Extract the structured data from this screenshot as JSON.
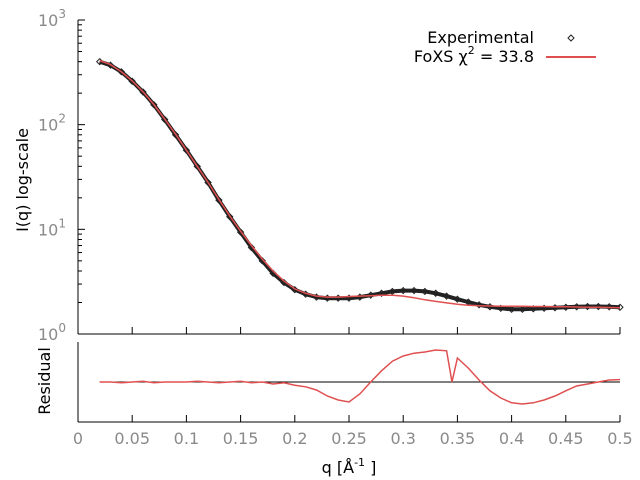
{
  "chart_data": [
    {
      "type": "scatter",
      "panel": "main",
      "ylabel": "I(q) log-scale",
      "yscale": "log",
      "ylim": [
        1,
        1000
      ],
      "xlim": [
        0,
        0.5
      ],
      "yticks": [
        {
          "base": "10",
          "exp": "0",
          "value": 1
        },
        {
          "base": "10",
          "exp": "1",
          "value": 10
        },
        {
          "base": "10",
          "exp": "2",
          "value": 100
        },
        {
          "base": "10",
          "exp": "3",
          "value": 1000
        }
      ],
      "legend_position": "top-right",
      "grid": false,
      "series": [
        {
          "name": "Experimental",
          "color": "#222222",
          "marker": "diamond",
          "x": [
            0.02,
            0.03,
            0.04,
            0.05,
            0.06,
            0.07,
            0.08,
            0.09,
            0.1,
            0.11,
            0.12,
            0.13,
            0.14,
            0.15,
            0.16,
            0.17,
            0.18,
            0.19,
            0.2,
            0.21,
            0.22,
            0.23,
            0.24,
            0.25,
            0.26,
            0.27,
            0.28,
            0.29,
            0.3,
            0.31,
            0.32,
            0.33,
            0.34,
            0.35,
            0.36,
            0.37,
            0.38,
            0.39,
            0.4,
            0.41,
            0.42,
            0.43,
            0.44,
            0.45,
            0.46,
            0.47,
            0.48,
            0.49,
            0.5
          ],
          "y": [
            400,
            370,
            320,
            260,
            205,
            155,
            112,
            80,
            57,
            40,
            28,
            19,
            13.2,
            9.4,
            6.7,
            5.0,
            3.8,
            3.1,
            2.65,
            2.4,
            2.25,
            2.2,
            2.2,
            2.2,
            2.25,
            2.35,
            2.45,
            2.55,
            2.6,
            2.6,
            2.55,
            2.45,
            2.3,
            2.15,
            2.02,
            1.9,
            1.82,
            1.76,
            1.72,
            1.72,
            1.74,
            1.76,
            1.78,
            1.8,
            1.82,
            1.83,
            1.83,
            1.82,
            1.8
          ]
        },
        {
          "name": "FoXS χ² = 33.8",
          "legend_text": "FoXS χ",
          "legend_sup": "2",
          "legend_suffix": " = 33.8",
          "color": "#e05050",
          "x": [
            0.02,
            0.03,
            0.04,
            0.05,
            0.06,
            0.07,
            0.08,
            0.09,
            0.1,
            0.11,
            0.12,
            0.13,
            0.14,
            0.15,
            0.16,
            0.17,
            0.18,
            0.19,
            0.2,
            0.21,
            0.22,
            0.23,
            0.24,
            0.25,
            0.26,
            0.27,
            0.28,
            0.29,
            0.3,
            0.31,
            0.32,
            0.33,
            0.34,
            0.35,
            0.36,
            0.37,
            0.38,
            0.39,
            0.4,
            0.41,
            0.42,
            0.43,
            0.44,
            0.45,
            0.46,
            0.47,
            0.48,
            0.49,
            0.5
          ],
          "y": [
            410,
            375,
            320,
            262,
            206,
            156,
            113,
            81,
            57,
            40,
            28,
            19.3,
            13.4,
            9.6,
            7.0,
            5.2,
            4.0,
            3.2,
            2.7,
            2.45,
            2.3,
            2.25,
            2.25,
            2.28,
            2.3,
            2.32,
            2.35,
            2.35,
            2.3,
            2.22,
            2.12,
            2.05,
            1.98,
            1.92,
            1.88,
            1.86,
            1.85,
            1.84,
            1.84,
            1.84,
            1.83,
            1.83,
            1.82,
            1.82,
            1.81,
            1.8,
            1.8,
            1.79,
            1.78
          ]
        }
      ]
    },
    {
      "type": "line",
      "panel": "residual",
      "xlabel": "q [Å",
      "xlabel_sup": "-1",
      "xlabel_suffix": " ]",
      "ylabel": "Residual",
      "xlim": [
        0,
        0.5
      ],
      "ylim": [
        -1,
        1
      ],
      "xticks": [
        "0",
        "0.05",
        "0.1",
        "0.15",
        "0.2",
        "0.25",
        "0.3",
        "0.35",
        "0.4",
        "0.45",
        "0.5"
      ],
      "baseline": 0,
      "series": [
        {
          "name": "Residual",
          "color": "#e05050",
          "x": [
            0.02,
            0.03,
            0.04,
            0.05,
            0.06,
            0.07,
            0.08,
            0.09,
            0.1,
            0.11,
            0.12,
            0.13,
            0.14,
            0.15,
            0.16,
            0.17,
            0.18,
            0.19,
            0.2,
            0.21,
            0.22,
            0.23,
            0.24,
            0.25,
            0.26,
            0.27,
            0.28,
            0.29,
            0.3,
            0.31,
            0.32,
            0.33,
            0.34,
            0.345,
            0.35,
            0.36,
            0.37,
            0.38,
            0.39,
            0.4,
            0.41,
            0.42,
            0.43,
            0.44,
            0.45,
            0.46,
            0.47,
            0.48,
            0.49,
            0.5
          ],
          "y": [
            0.0,
            0.0,
            -0.02,
            0.0,
            0.02,
            -0.02,
            0.0,
            0.0,
            0.0,
            0.02,
            0.0,
            -0.02,
            0.0,
            0.02,
            -0.02,
            0.0,
            -0.05,
            -0.02,
            -0.08,
            -0.12,
            -0.2,
            -0.35,
            -0.45,
            -0.5,
            -0.3,
            0.0,
            0.28,
            0.52,
            0.65,
            0.72,
            0.75,
            0.8,
            0.78,
            0.0,
            0.6,
            0.35,
            0.05,
            -0.22,
            -0.4,
            -0.52,
            -0.55,
            -0.52,
            -0.45,
            -0.35,
            -0.22,
            -0.1,
            -0.05,
            0.0,
            0.05,
            0.06
          ]
        }
      ]
    }
  ]
}
